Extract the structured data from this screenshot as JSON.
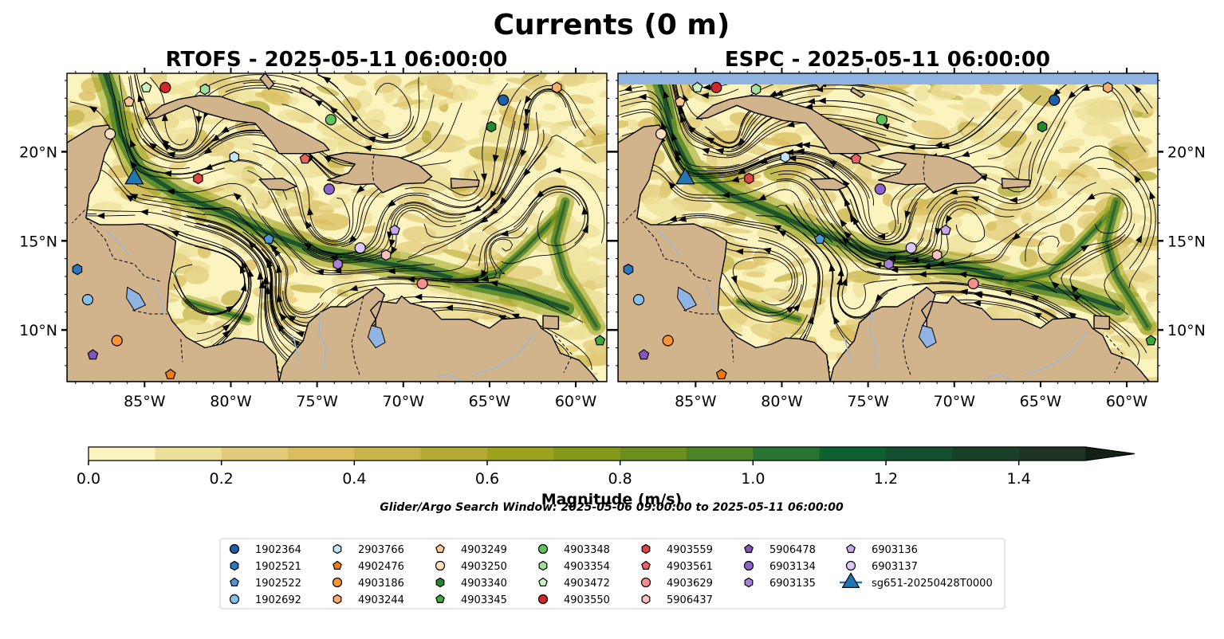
{
  "figure": {
    "title": "Currents (0 m)",
    "search_window": "Glider/Argo Search Window: 2025-05-06 09:00:00 to 2025-05-11 06:00:00"
  },
  "panels": [
    {
      "id": "rtofs",
      "title": "RTOFS - 2025-05-11 06:00:00"
    },
    {
      "id": "espc",
      "title": "ESPC - 2025-05-11 06:00:00"
    }
  ],
  "map_extent": {
    "lon_min": -89.5,
    "lon_max": -58.2,
    "lat_min": 7.1,
    "lat_max": 24.4
  },
  "lon_ticks": [
    {
      "value": -85,
      "label": "85°W"
    },
    {
      "value": -80,
      "label": "80°W"
    },
    {
      "value": -75,
      "label": "75°W"
    },
    {
      "value": -70,
      "label": "70°W"
    },
    {
      "value": -65,
      "label": "65°W"
    },
    {
      "value": -60,
      "label": "60°W"
    }
  ],
  "lat_ticks": [
    {
      "value": 10,
      "label": "10°N"
    },
    {
      "value": 15,
      "label": "15°N"
    },
    {
      "value": 20,
      "label": "20°N"
    }
  ],
  "colorbar": {
    "label": "Magnitude (m/s)",
    "min": 0.0,
    "max": 1.5,
    "extend": "max",
    "ticks": [
      {
        "value": 0.0,
        "label": "0.0"
      },
      {
        "value": 0.2,
        "label": "0.2"
      },
      {
        "value": 0.4,
        "label": "0.4"
      },
      {
        "value": 0.6,
        "label": "0.6"
      },
      {
        "value": 0.8,
        "label": "0.8"
      },
      {
        "value": 1.0,
        "label": "1.0"
      },
      {
        "value": 1.2,
        "label": "1.2"
      },
      {
        "value": 1.4,
        "label": "1.4"
      }
    ],
    "colors": [
      "#fbf4bf",
      "#ede09a",
      "#e1cc7c",
      "#d8be5e",
      "#c7b44b",
      "#b2aa33",
      "#9ba31f",
      "#84991a",
      "#6b8f1c",
      "#4c8327",
      "#287430",
      "#0e6230",
      "#134f2e",
      "#1a4028",
      "#1f3422",
      "#1a281b",
      "#132015"
    ]
  },
  "colors": {
    "land": "#d2b48c",
    "water_lakes": "#8fb4e3",
    "border": "#000000"
  },
  "floats": [
    {
      "id": "1902364",
      "marker": "circle",
      "color": "#1f5fa8",
      "lon": -64.2,
      "lat": 22.9
    },
    {
      "id": "1902521",
      "marker": "hexagon",
      "color": "#2a78c0",
      "lon": -88.9,
      "lat": 13.4
    },
    {
      "id": "1902522",
      "marker": "pentagon",
      "color": "#4d96d6",
      "lon": -77.8,
      "lat": 15.1
    },
    {
      "id": "1902692",
      "marker": "circle",
      "color": "#86c1ea",
      "lon": -88.3,
      "lat": 11.7
    },
    {
      "id": "2903766",
      "marker": "hexagon",
      "color": "#c4e4f8",
      "lon": -79.8,
      "lat": 19.7
    },
    {
      "id": "4902476",
      "marker": "pentagon",
      "color": "#f07c10",
      "lon": -83.5,
      "lat": 7.5
    },
    {
      "id": "4903186",
      "marker": "circle",
      "color": "#fb9437",
      "lon": -86.6,
      "lat": 9.4
    },
    {
      "id": "4903244",
      "marker": "hexagon",
      "color": "#fbae6b",
      "lon": -61.1,
      "lat": 23.6
    },
    {
      "id": "4903249",
      "marker": "pentagon",
      "color": "#fdc58f",
      "lon": -85.9,
      "lat": 22.8
    },
    {
      "id": "4903250",
      "marker": "circle",
      "color": "#fde0c0",
      "lon": -87.0,
      "lat": 21.0
    },
    {
      "id": "4903340",
      "marker": "hexagon",
      "color": "#23882b",
      "lon": -64.9,
      "lat": 21.4
    },
    {
      "id": "4903345",
      "marker": "pentagon",
      "color": "#3ea83a",
      "lon": -58.6,
      "lat": 9.4
    },
    {
      "id": "4903348",
      "marker": "circle",
      "color": "#60c35a",
      "lon": -74.2,
      "lat": 21.8
    },
    {
      "id": "4903354",
      "marker": "hexagon",
      "color": "#9fe09a",
      "lon": -81.5,
      "lat": 23.5
    },
    {
      "id": "4903472",
      "marker": "pentagon",
      "color": "#c9f5c0",
      "lon": -84.9,
      "lat": 23.6
    },
    {
      "id": "4903550",
      "marker": "circle",
      "color": "#d02828",
      "lon": -83.8,
      "lat": 23.6
    },
    {
      "id": "4903559",
      "marker": "hexagon",
      "color": "#de4545",
      "lon": -81.9,
      "lat": 18.5
    },
    {
      "id": "4903561",
      "marker": "pentagon",
      "color": "#ef6060",
      "lon": -75.7,
      "lat": 19.6
    },
    {
      "id": "4903629",
      "marker": "circle",
      "color": "#f58f8f",
      "lon": -68.9,
      "lat": 12.6
    },
    {
      "id": "5906437",
      "marker": "hexagon",
      "color": "#fbc0c0",
      "lon": -71.0,
      "lat": 14.2
    },
    {
      "id": "5906478",
      "marker": "pentagon",
      "color": "#8355be",
      "lon": -88.0,
      "lat": 8.6
    },
    {
      "id": "6903134",
      "marker": "circle",
      "color": "#9063cc",
      "lon": -74.3,
      "lat": 17.9
    },
    {
      "id": "6903135",
      "marker": "hexagon",
      "color": "#a882d9",
      "lon": -73.8,
      "lat": 13.7
    },
    {
      "id": "6903136",
      "marker": "pentagon",
      "color": "#c8a8ec",
      "lon": -70.5,
      "lat": 15.6
    },
    {
      "id": "6903137",
      "marker": "circle",
      "color": "#dcc8f6",
      "lon": -72.5,
      "lat": 14.6
    },
    {
      "id": "sg651-20250428T0000",
      "marker": "triangle",
      "color": "#1f77b4",
      "lon": -85.6,
      "lat": 18.6
    }
  ],
  "legend_columns": [
    [
      "1902364",
      "1902521",
      "1902522",
      "1902692"
    ],
    [
      "2903766",
      "4902476",
      "4903186",
      "4903244"
    ],
    [
      "4903249",
      "4903250",
      "4903340",
      "4903345"
    ],
    [
      "4903348",
      "4903354",
      "4903472",
      "4903550"
    ],
    [
      "4903559",
      "4903561",
      "4903629",
      "5906437"
    ],
    [
      "5906478",
      "6903134",
      "6903135"
    ],
    [
      "6903136",
      "6903137",
      "sg651-20250428T0000"
    ]
  ]
}
